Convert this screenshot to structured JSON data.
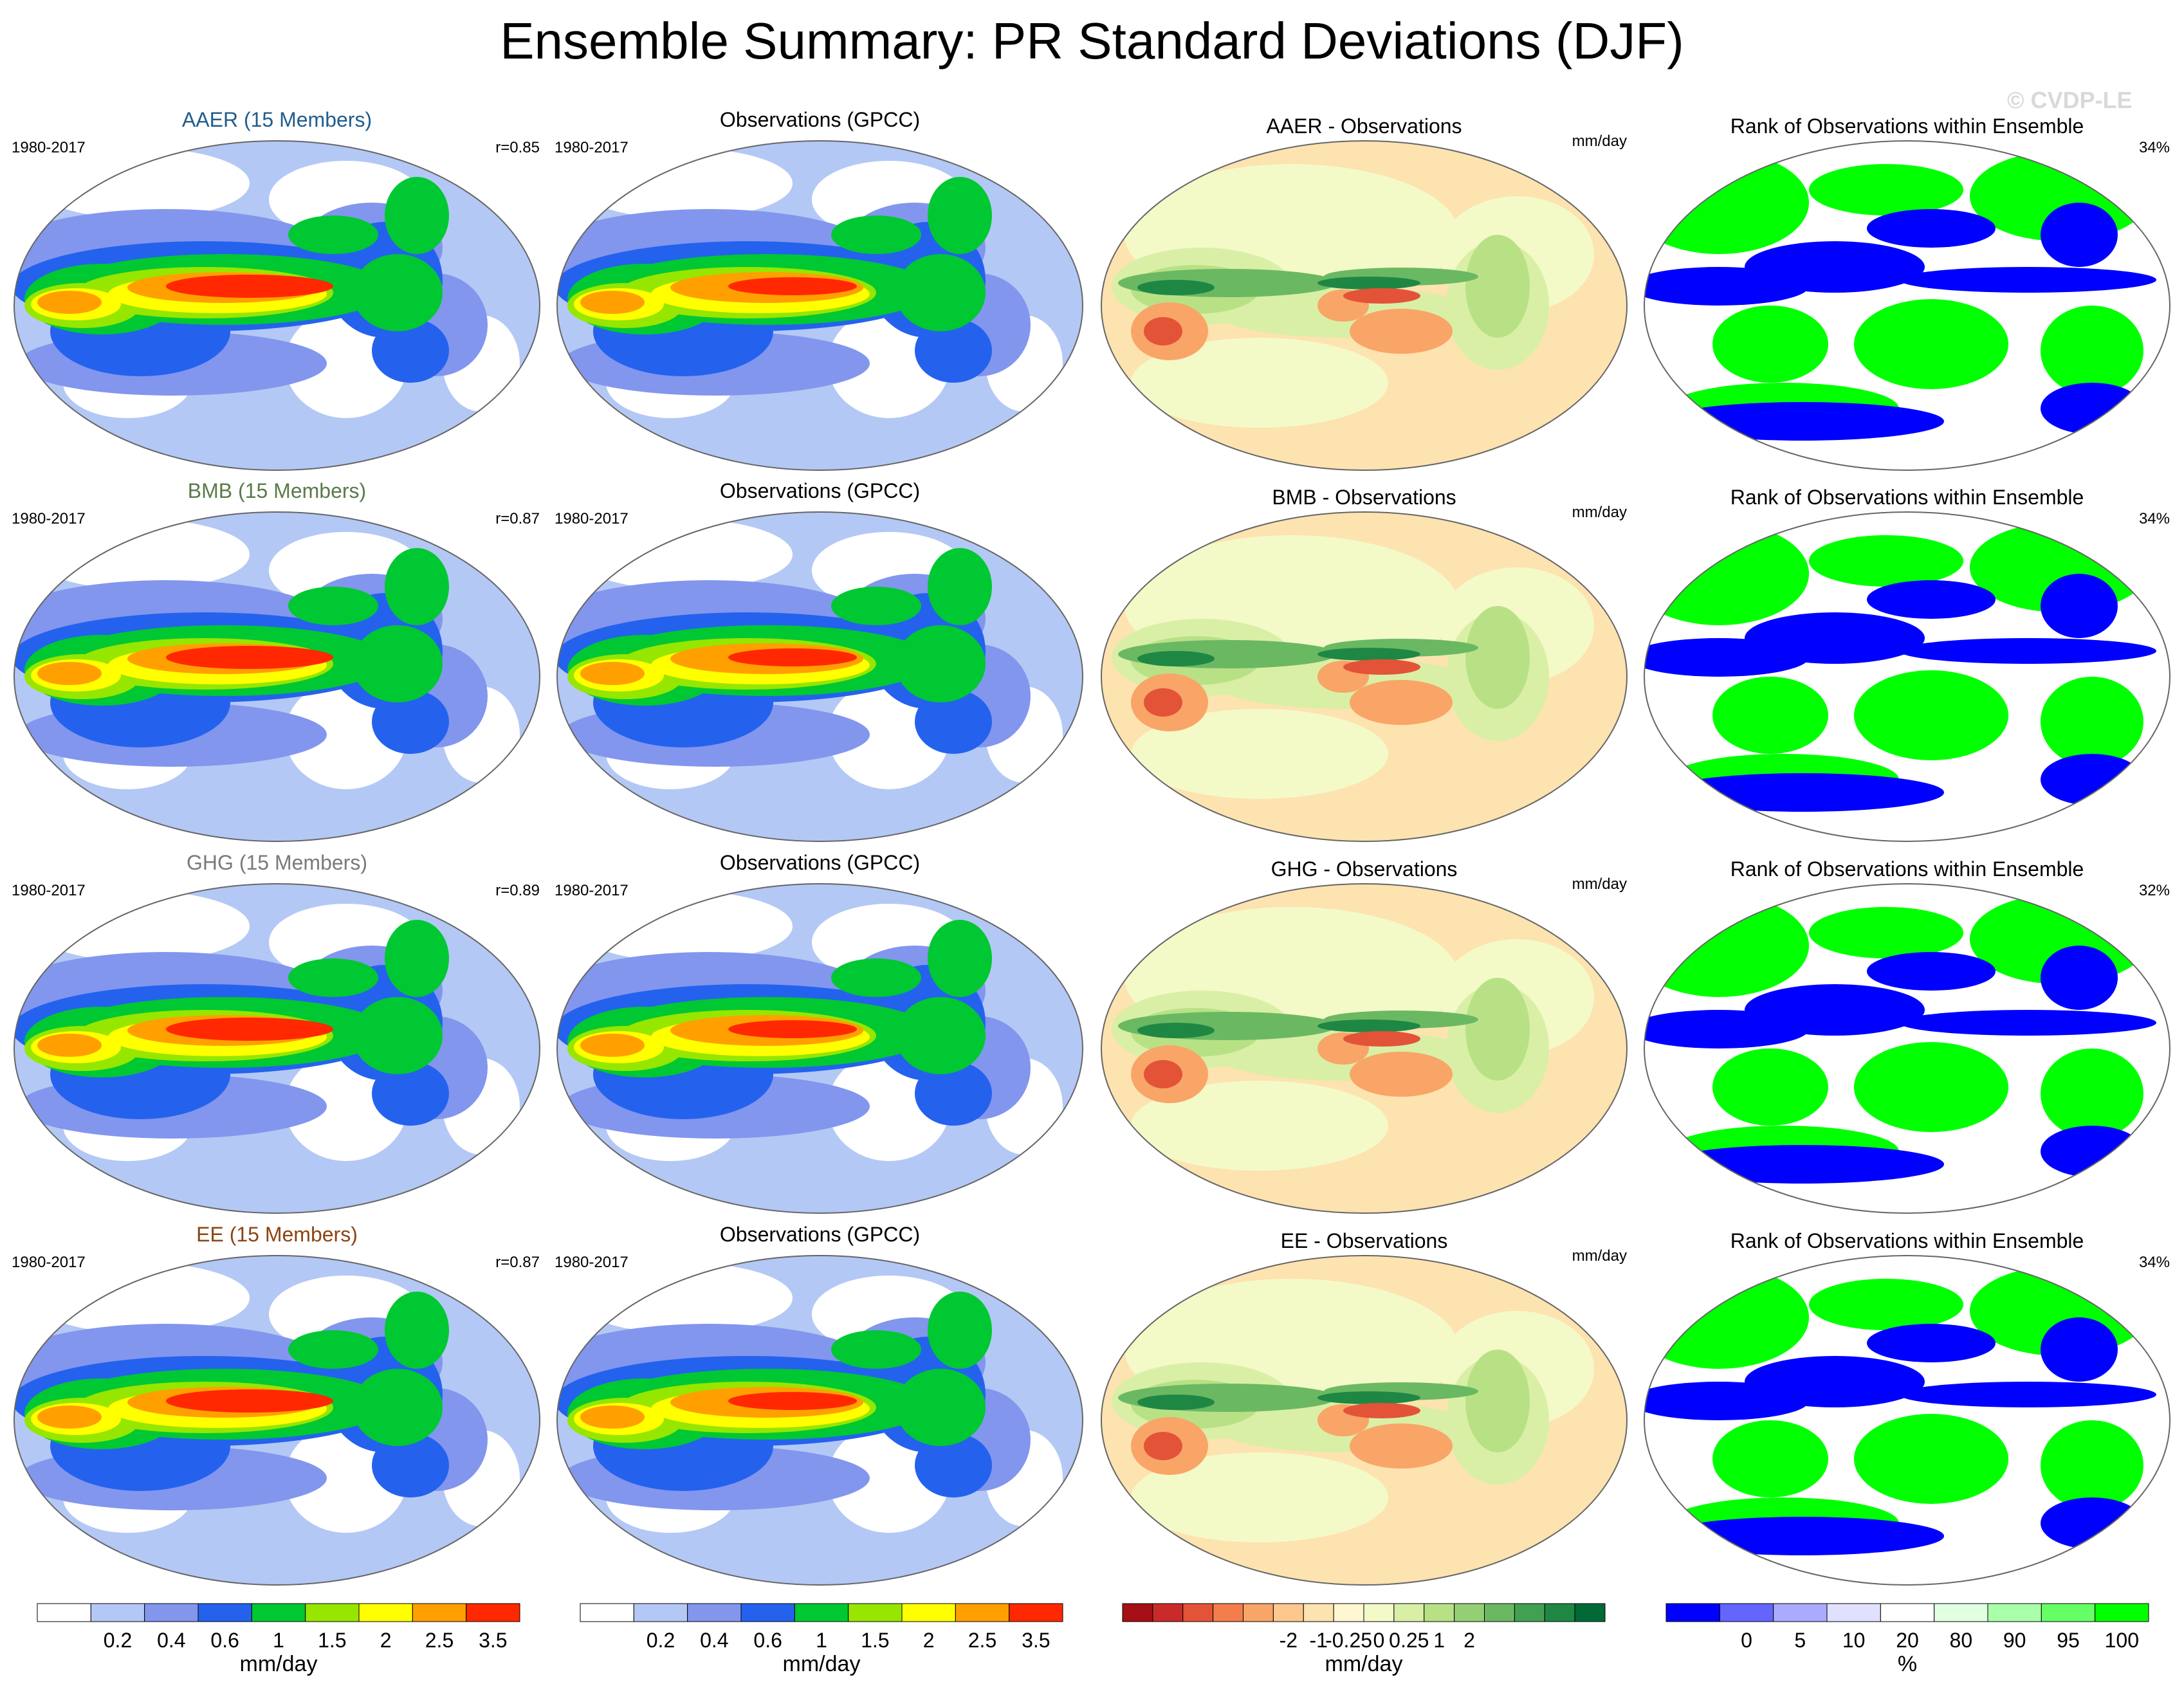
{
  "figure": {
    "title": "Ensemble Summary: PR Standard Deviations (DJF)",
    "watermark": "© CVDP-LE"
  },
  "chart_data": {
    "type": "map_panels",
    "season": "DJF",
    "variable": "PR standard deviation",
    "rows": [
      {
        "model": {
          "label": "AAER (15 Members)",
          "label_color": "#1f5d8c",
          "period": "1980-2017",
          "pattern_correlation": "r=0.85"
        },
        "observations": {
          "label": "Observations (GPCC)",
          "period": "1980-2017"
        },
        "difference": {
          "label": "AAER - Observations",
          "units": "mm/day"
        },
        "rank": {
          "label": "Rank of Observations within Ensemble",
          "percent": "34%"
        }
      },
      {
        "model": {
          "label": "BMB (15 Members)",
          "label_color": "#5a7a4a",
          "period": "1980-2017",
          "pattern_correlation": "r=0.87"
        },
        "observations": {
          "label": "Observations (GPCC)",
          "period": "1980-2017"
        },
        "difference": {
          "label": "BMB - Observations",
          "units": "mm/day"
        },
        "rank": {
          "label": "Rank of Observations within Ensemble",
          "percent": "34%"
        }
      },
      {
        "model": {
          "label": "GHG (15 Members)",
          "label_color": "#7a7a7a",
          "period": "1980-2017",
          "pattern_correlation": "r=0.89"
        },
        "observations": {
          "label": "Observations (GPCC)",
          "period": "1980-2017"
        },
        "difference": {
          "label": "GHG - Observations",
          "units": "mm/day"
        },
        "rank": {
          "label": "Rank of Observations within Ensemble",
          "percent": "32%"
        }
      },
      {
        "model": {
          "label": "EE (15 Members)",
          "label_color": "#8b4513",
          "period": "1980-2017",
          "pattern_correlation": "r=0.87"
        },
        "observations": {
          "label": "Observations (GPCC)",
          "period": "1980-2017"
        },
        "difference": {
          "label": "EE - Observations",
          "units": "mm/day"
        },
        "rank": {
          "label": "Rank of Observations within Ensemble",
          "percent": "34%"
        }
      }
    ],
    "colorbars": [
      {
        "id": "std_model",
        "units": "mm/day",
        "colors": [
          "#ffffff",
          "#b4c8f5",
          "#8296ee",
          "#2462ee",
          "#00c832",
          "#96e600",
          "#ffff00",
          "#ffa000",
          "#ff2800"
        ],
        "tick_labels": [
          "0.2",
          "0.4",
          "0.6",
          "1",
          "1.5",
          "2",
          "2.5",
          "3.5"
        ]
      },
      {
        "id": "std_obs",
        "units": "mm/day",
        "colors": [
          "#ffffff",
          "#b4c8f5",
          "#8296ee",
          "#2462ee",
          "#00c832",
          "#96e600",
          "#ffff00",
          "#ffa000",
          "#ff2800"
        ],
        "tick_labels": [
          "0.2",
          "0.4",
          "0.6",
          "1",
          "1.5",
          "2",
          "2.5",
          "3.5"
        ]
      },
      {
        "id": "difference",
        "units": "mm/day",
        "colors": [
          "#a50f15",
          "#cb2a2a",
          "#e35338",
          "#f47d4d",
          "#f9a568",
          "#fcc88e",
          "#fde3b0",
          "#fff6d2",
          "#f4f9c8",
          "#d9efa6",
          "#b8e186",
          "#94cf76",
          "#6bb863",
          "#42a052",
          "#1f8744",
          "#006a37"
        ],
        "tick_labels": [
          "-2",
          "-1",
          "-0.25",
          "0",
          "0.25",
          "1",
          "2"
        ]
      },
      {
        "id": "rank",
        "units": "%",
        "colors": [
          "#0000ff",
          "#6464ff",
          "#aaaaff",
          "#e1e1ff",
          "#ffffff",
          "#e1ffe1",
          "#aaffaa",
          "#64ff64",
          "#00ff00"
        ],
        "tick_labels": [
          "0",
          "5",
          "10",
          "20",
          "80",
          "90",
          "95",
          "100"
        ]
      }
    ]
  }
}
